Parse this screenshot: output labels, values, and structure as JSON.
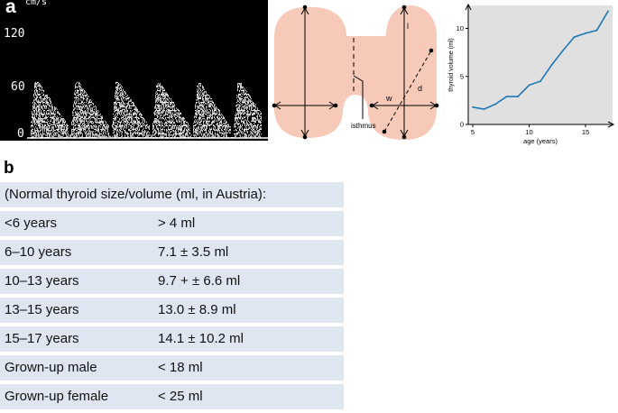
{
  "panel_a_label": "a",
  "panel_b_label": "b",
  "doppler": {
    "unit": "cm/s",
    "y_ticks": [
      "120",
      "60",
      "0"
    ],
    "peaks": 6
  },
  "diagram": {
    "fill_color": "#f6c9b8",
    "labels": {
      "length": "l",
      "width": "w",
      "depth": "d",
      "isthmus": "isthmus"
    }
  },
  "chart_data": {
    "type": "line",
    "xlabel": "age (years)",
    "ylabel": "thyroid volume (ml)",
    "xlim": [
      4.6,
      17.4
    ],
    "ylim": [
      0,
      12.4
    ],
    "xticks": [
      5,
      10,
      15
    ],
    "yticks": [
      0,
      5,
      10
    ],
    "background": "#e0e0e0",
    "line_color": "#1f77b4",
    "x": [
      5,
      6,
      7,
      8,
      9,
      10,
      11,
      12,
      13,
      14,
      15,
      16,
      17
    ],
    "y": [
      1.8,
      1.6,
      2.1,
      2.9,
      2.9,
      4.1,
      4.5,
      6.2,
      7.7,
      9.1,
      9.5,
      9.8,
      11.8
    ]
  },
  "table": {
    "header": "(Normal thyroid size/volume (ml, in Austria):",
    "rows": [
      {
        "age": "<6 years",
        "volume": "> 4  ml"
      },
      {
        "age": "6–10  years",
        "volume": "7.1 ± 3.5 ml"
      },
      {
        "age": "10–13  years",
        "volume": "9.7 + ± 6.6 ml"
      },
      {
        "age": "13–15  years",
        "volume": "13.0 ± 8.9 ml"
      },
      {
        "age": "15–17  years",
        "volume": "14.1 ± 10.2 ml"
      },
      {
        "age": "Grown-up male",
        "volume": "< 18  ml"
      },
      {
        "age": "Grown-up female",
        "volume": "< 25  ml"
      }
    ]
  }
}
